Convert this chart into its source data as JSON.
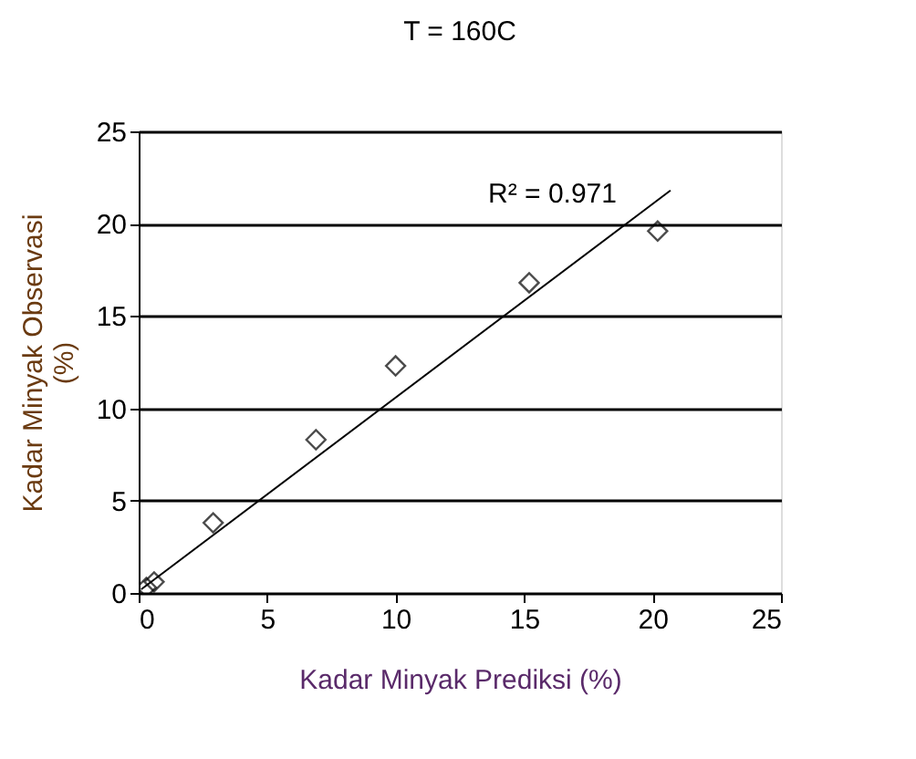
{
  "chart_data": {
    "type": "scatter",
    "title": "T = 160C",
    "xlabel": "Kadar Minyak Prediksi (%)",
    "ylabel": "Kadar Minyak Observasi (%)",
    "xlim": [
      0,
      25
    ],
    "ylim": [
      0,
      25
    ],
    "xticks": [
      0,
      5,
      10,
      15,
      20,
      25
    ],
    "yticks": [
      0,
      5,
      10,
      15,
      20,
      25
    ],
    "grid": "y",
    "series": [
      {
        "type": "scatter",
        "color": "#000000",
        "marker": "diamond",
        "x": [
          0.3,
          0.6,
          2.9,
          6.9,
          10.0,
          15.2,
          20.2
        ],
        "values": [
          0.3,
          0.6,
          3.8,
          8.3,
          12.3,
          16.8,
          19.6
        ]
      },
      {
        "type": "line",
        "color": "#000000",
        "line_style": "solid",
        "x": [
          0.1,
          20.7
        ],
        "values": [
          0.2,
          21.8
        ]
      }
    ],
    "annotations": [
      "R² = 0.971"
    ]
  }
}
